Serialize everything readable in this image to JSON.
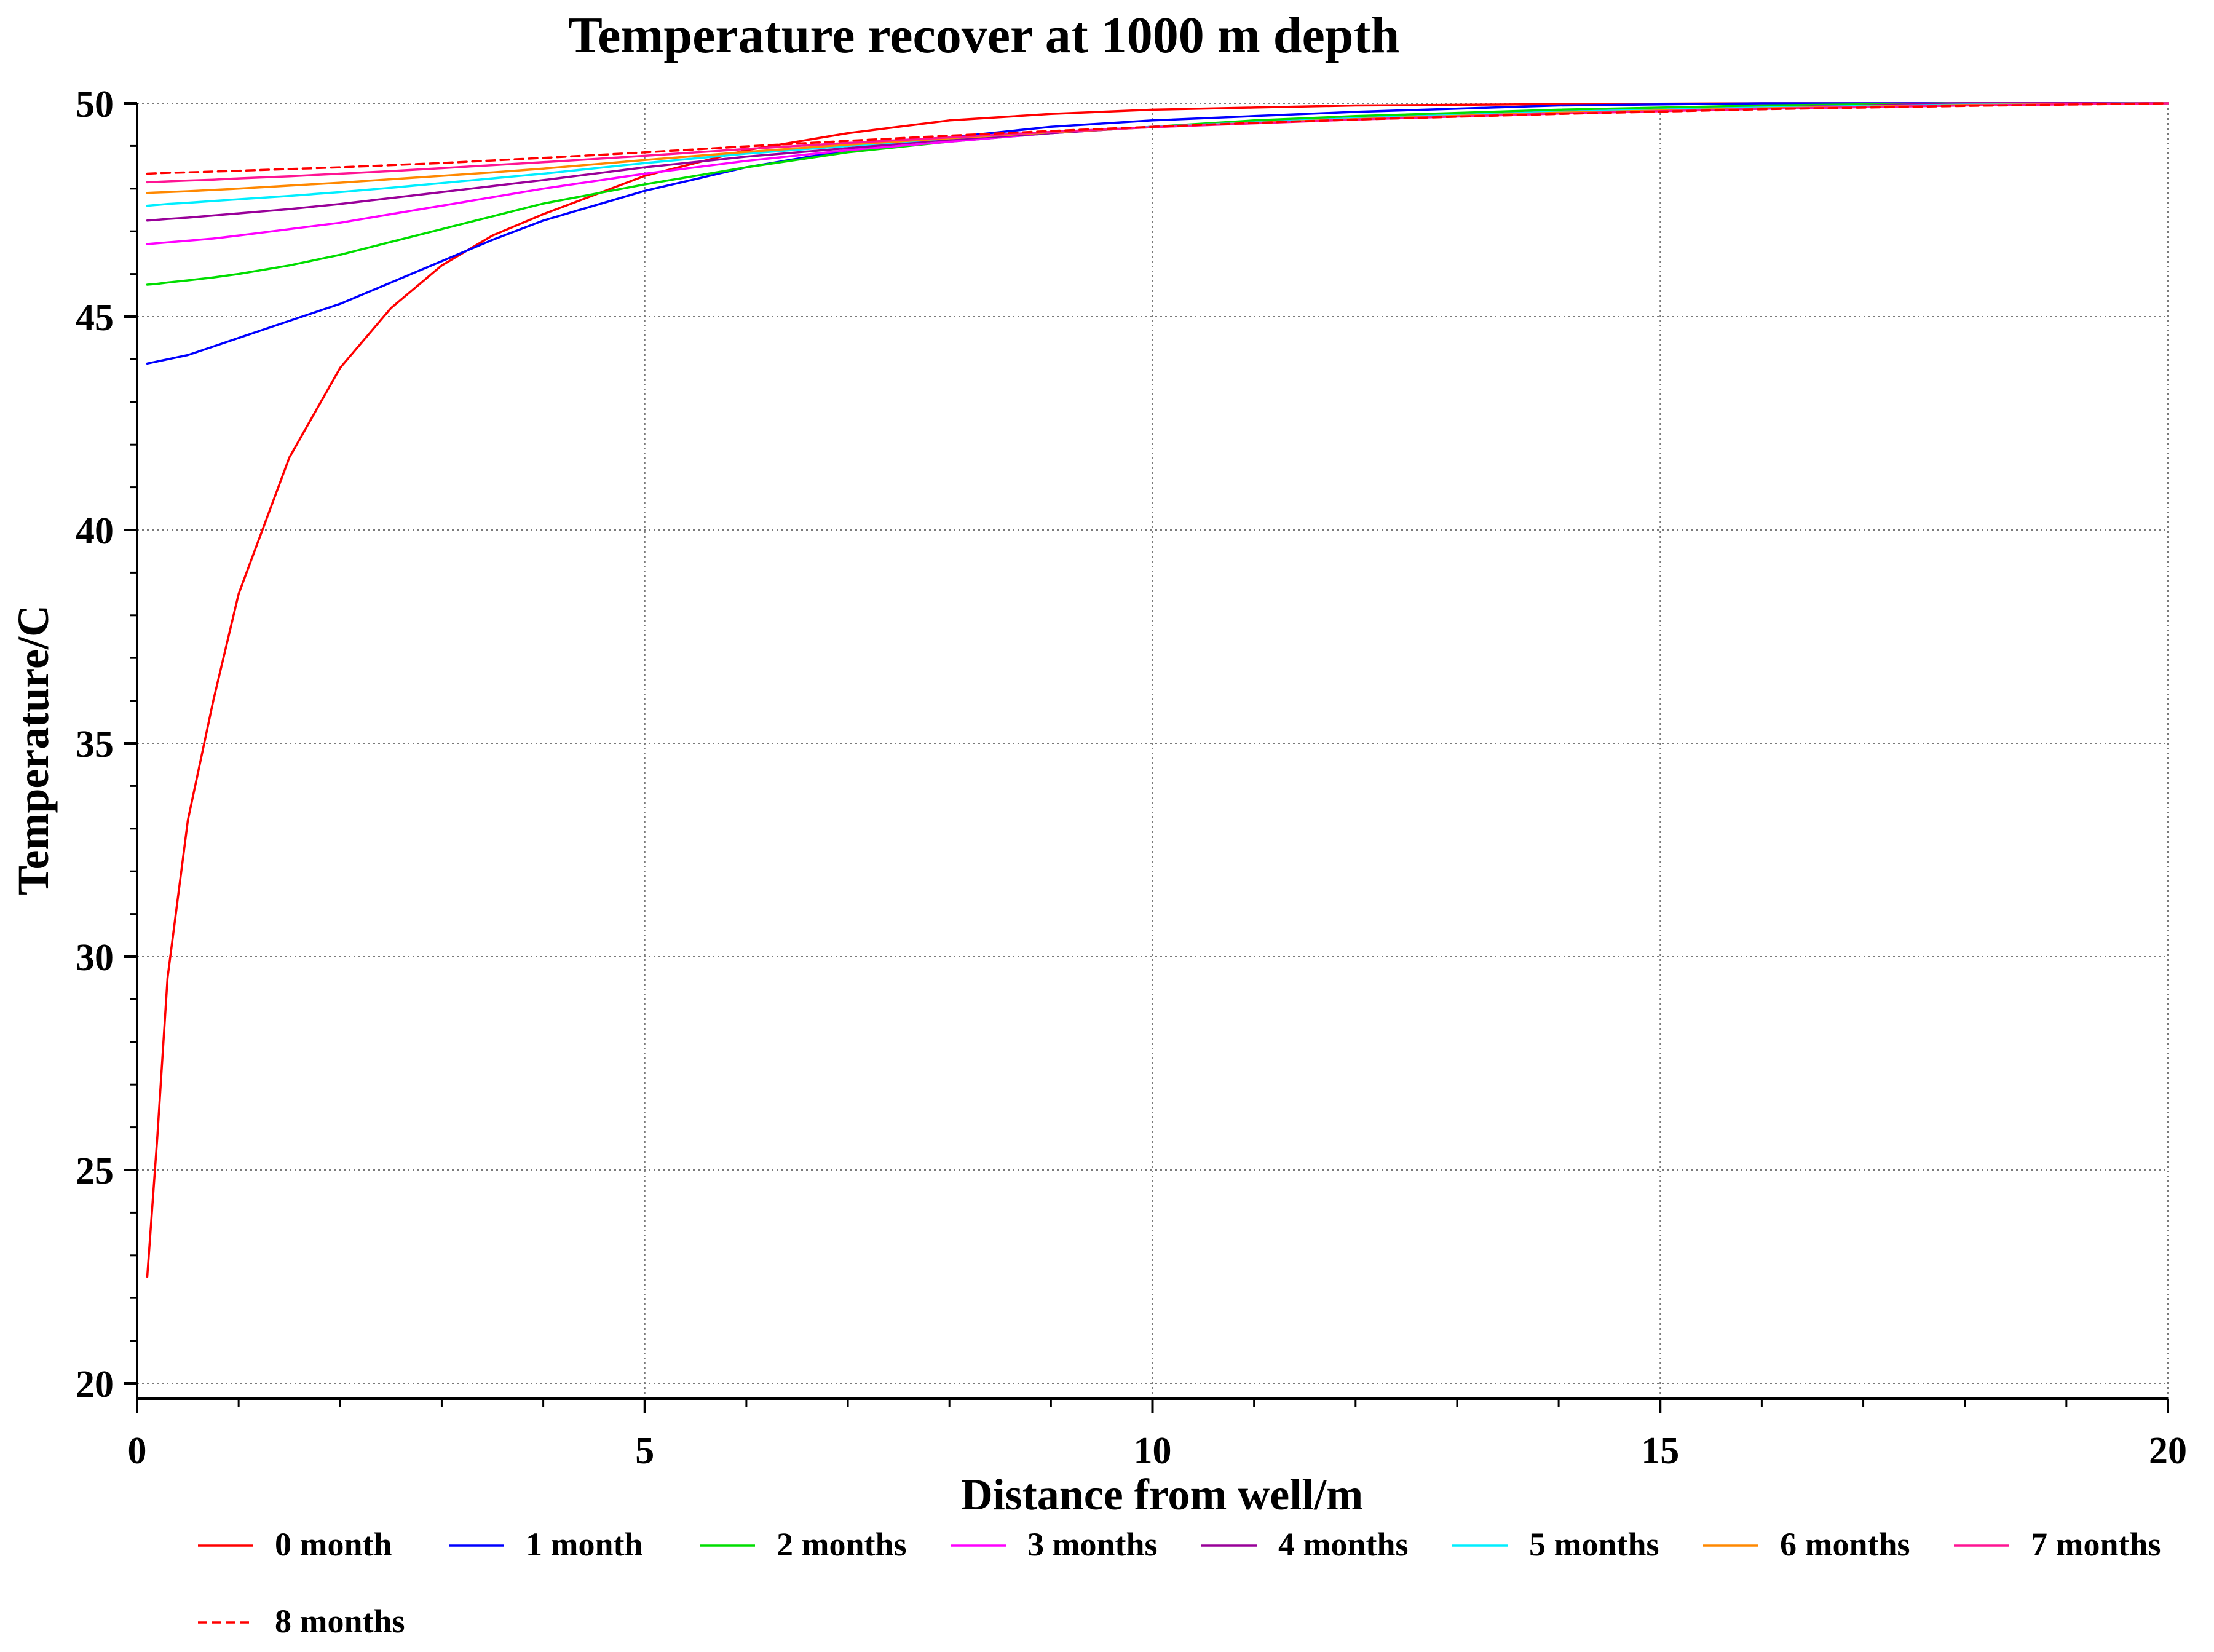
{
  "chart_data": {
    "type": "line",
    "title": "Temperature recover at 1000 m depth",
    "xlabel": "Distance from well/m",
    "ylabel": "Temperature/C",
    "xlim": [
      0,
      20
    ],
    "ylim": [
      20,
      50
    ],
    "xticks": [
      0,
      5,
      10,
      15,
      20
    ],
    "yticks": [
      20,
      25,
      30,
      35,
      40,
      45,
      50
    ],
    "grid": true,
    "legend_position": "bottom",
    "x": [
      0.1,
      0.2,
      0.3,
      0.5,
      0.75,
      1,
      1.5,
      2,
      2.5,
      3,
      3.5,
      4,
      5,
      6,
      7,
      8,
      9,
      10,
      11,
      12,
      14,
      16,
      18,
      20
    ],
    "series": [
      {
        "name": "0 month",
        "color": "#ff0000",
        "dash": "",
        "values": [
          22.5,
          25.8,
          29.5,
          33.2,
          36.0,
          38.5,
          41.7,
          43.8,
          45.2,
          46.2,
          46.9,
          47.4,
          48.3,
          48.9,
          49.3,
          49.6,
          49.75,
          49.85,
          49.9,
          49.95,
          49.98,
          50.0,
          50.0,
          50.0
        ]
      },
      {
        "name": "1 month",
        "color": "#0000ff",
        "dash": "",
        "values": [
          43.9,
          43.95,
          44.0,
          44.1,
          44.3,
          44.5,
          44.9,
          45.3,
          45.8,
          46.3,
          46.8,
          47.25,
          47.95,
          48.5,
          48.9,
          49.2,
          49.45,
          49.6,
          49.7,
          49.8,
          49.95,
          50.0,
          50.0,
          50.0
        ]
      },
      {
        "name": "2 months",
        "color": "#00dd00",
        "dash": "",
        "values": [
          45.75,
          45.77,
          45.8,
          45.85,
          45.92,
          46.0,
          46.2,
          46.45,
          46.75,
          47.05,
          47.35,
          47.65,
          48.1,
          48.5,
          48.85,
          49.1,
          49.3,
          49.45,
          49.6,
          49.7,
          49.85,
          49.95,
          50.0,
          50.0
        ]
      },
      {
        "name": "3 months",
        "color": "#ff00ff",
        "dash": "",
        "values": [
          46.7,
          46.72,
          46.74,
          46.78,
          46.83,
          46.9,
          47.05,
          47.2,
          47.4,
          47.6,
          47.8,
          48.0,
          48.35,
          48.65,
          48.9,
          49.1,
          49.3,
          49.45,
          49.55,
          49.65,
          49.8,
          49.9,
          50.0,
          50.0
        ]
      },
      {
        "name": "4 months",
        "color": "#990099",
        "dash": "",
        "values": [
          47.25,
          47.27,
          47.29,
          47.32,
          47.37,
          47.42,
          47.52,
          47.64,
          47.78,
          47.92,
          48.06,
          48.2,
          48.5,
          48.75,
          48.95,
          49.15,
          49.3,
          49.45,
          49.55,
          49.65,
          49.8,
          49.9,
          50.0,
          50.0
        ]
      },
      {
        "name": "5 months",
        "color": "#00eeff",
        "dash": "",
        "values": [
          47.6,
          47.62,
          47.64,
          47.67,
          47.71,
          47.75,
          47.83,
          47.92,
          48.02,
          48.13,
          48.24,
          48.35,
          48.6,
          48.82,
          49.0,
          49.18,
          49.32,
          49.45,
          49.55,
          49.65,
          49.8,
          49.9,
          49.97,
          50.0
        ]
      },
      {
        "name": "6 months",
        "color": "#ff8800",
        "dash": "",
        "values": [
          47.9,
          47.91,
          47.92,
          47.94,
          47.97,
          48.0,
          48.07,
          48.14,
          48.22,
          48.3,
          48.38,
          48.47,
          48.67,
          48.86,
          49.03,
          49.18,
          49.32,
          49.44,
          49.54,
          49.63,
          49.78,
          49.88,
          49.96,
          50.0
        ]
      },
      {
        "name": "7 months",
        "color": "#ff1493",
        "dash": "",
        "values": [
          48.15,
          48.16,
          48.17,
          48.19,
          48.21,
          48.24,
          48.29,
          48.35,
          48.41,
          48.48,
          48.55,
          48.62,
          48.77,
          48.93,
          49.07,
          49.2,
          49.33,
          49.44,
          49.53,
          49.62,
          49.76,
          49.87,
          49.95,
          50.0
        ]
      },
      {
        "name": "8 months",
        "color": "#ff0000",
        "dash": "14 9",
        "values": [
          48.35,
          48.36,
          48.37,
          48.38,
          48.4,
          48.42,
          48.46,
          48.5,
          48.55,
          48.6,
          48.66,
          48.72,
          48.85,
          48.99,
          49.12,
          49.24,
          49.35,
          49.45,
          49.54,
          49.62,
          49.75,
          49.86,
          49.94,
          50.0
        ]
      }
    ]
  }
}
